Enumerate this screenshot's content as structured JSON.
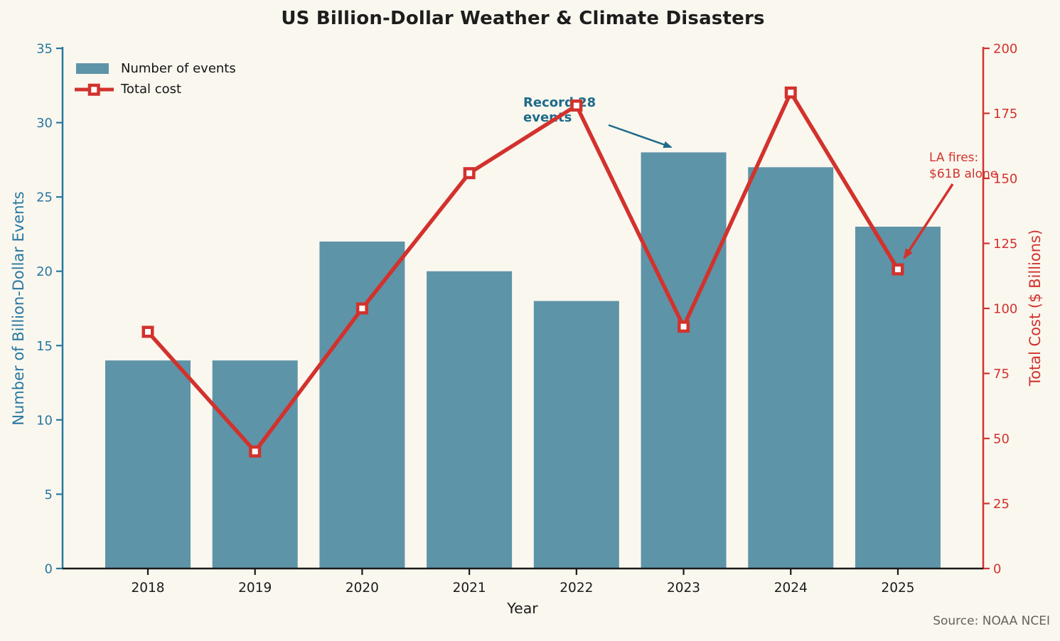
{
  "chart_data": {
    "type": "bar",
    "title": "US Billion-Dollar Weather & Climate Disasters",
    "xlabel": "Year",
    "ylabel_left": "Number of Billion-Dollar Events",
    "ylabel_right": "Total Cost ($ Billions)",
    "categories": [
      "2018",
      "2019",
      "2020",
      "2021",
      "2022",
      "2023",
      "2024",
      "2025"
    ],
    "series": [
      {
        "name": "Number of events",
        "render": "bar",
        "axis": "left",
        "values": [
          14,
          14,
          22,
          20,
          18,
          28,
          27,
          23
        ]
      },
      {
        "name": "Total cost",
        "render": "line",
        "axis": "right",
        "values": [
          91,
          45,
          100,
          152,
          178,
          93,
          183,
          115
        ]
      }
    ],
    "ylim_left": [
      0,
      35
    ],
    "ylim_right": [
      0,
      200
    ],
    "yticks_left": [
      0,
      5,
      10,
      15,
      20,
      25,
      30,
      35
    ],
    "yticks_right": [
      0,
      25,
      50,
      75,
      100,
      125,
      150,
      175,
      200
    ],
    "grid": false,
    "legend_position": "upper-left",
    "legend": {
      "bar_label": "Number of events",
      "line_label": "Total cost"
    },
    "annotations": {
      "record": {
        "line1": "Record 28",
        "line2": "events",
        "points_to": "2023"
      },
      "la_fires": {
        "line1": "LA fires:",
        "line2": "$61B alone",
        "points_to": "2025"
      }
    },
    "source": "Source: NOAA NCEI",
    "colors": {
      "background": "#faf7ef",
      "bar": "#5e94a7",
      "line": "#d2322d",
      "left_axis": "#2878a0",
      "right_axis": "#d2322d",
      "x_axis": "#1a1a1a",
      "title": "#1d1d1d",
      "annotation_teal": "#1d6b8a",
      "annotation_red": "#d2322d",
      "source": "#64625c",
      "marker_fill": "#ffffff"
    }
  }
}
